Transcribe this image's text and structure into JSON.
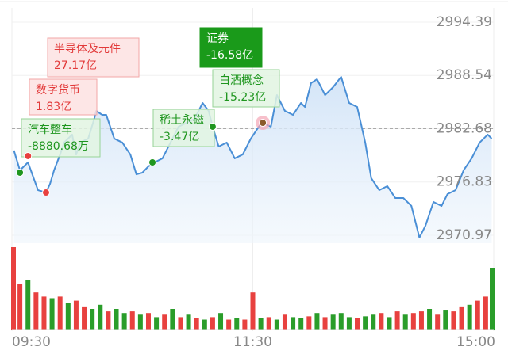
{
  "chart_data": [
    {
      "type": "line",
      "color": "#4a8fd6",
      "x": [
        1,
        4,
        8,
        13,
        17,
        19,
        21,
        24,
        26,
        30,
        32,
        34,
        38,
        41,
        42,
        45,
        47,
        51,
        55,
        59,
        62,
        65,
        68,
        71,
        75,
        79,
        83,
        87,
        91,
        95,
        98,
        100,
        103,
        107,
        111,
        115,
        119,
        123,
        125,
        129,
        132,
        136,
        140,
        144,
        146,
        149,
        152,
        156,
        160,
        164,
        168,
        172,
        176,
        179,
        183,
        187,
        191,
        195,
        199,
        203,
        206,
        210,
        214,
        217,
        221,
        225,
        229,
        233,
        237,
        239
      ],
      "values": [
        2980.29,
        2978.11,
        2978.98,
        2975.93,
        2975.67,
        2976.63,
        2978.11,
        2979.85,
        2981.16,
        2982.03,
        2979.85,
        2981.16,
        2981.59,
        2983.77,
        2984.64,
        2984.2,
        2984.2,
        2981.59,
        2981.16,
        2979.85,
        2977.67,
        2977.85,
        2978.54,
        2978.98,
        2979.42,
        2981.16,
        2982.9,
        2983.33,
        2983.77,
        2985.51,
        2984.64,
        2982.9,
        2980.72,
        2981.16,
        2979.42,
        2979.85,
        2981.59,
        2982.9,
        2983.33,
        2982.9,
        2986.38,
        2984.64,
        2984.2,
        2985.51,
        2985.07,
        2987.69,
        2988.12,
        2986.38,
        2987.25,
        2988.38,
        2985.51,
        2985.07,
        2981.16,
        2977.24,
        2975.93,
        2976.37,
        2975.06,
        2975.06,
        2974.19,
        2970.71,
        2972.02,
        2974.63,
        2974.19,
        2975.5,
        2975.93,
        2978.11,
        2979.42,
        2981.16,
        2982.03,
        2981.59
      ],
      "xlim": [
        0,
        240
      ],
      "xticks": [
        {
          "value": 0,
          "label": "09:30"
        },
        {
          "value": 120,
          "label": "11:30"
        },
        {
          "value": 240,
          "label": "15:00"
        }
      ],
      "ylim": [
        2970.97,
        2994.39
      ],
      "yticks": [
        2970.97,
        2976.83,
        2982.68,
        2988.54,
        2994.39
      ],
      "reference": 2982.68,
      "grid": true,
      "annotations": [
        {
          "name": "半导体及元件",
          "amount": "27.17亿",
          "x": 17,
          "y": 2975.67,
          "style": "red"
        },
        {
          "name": "数字货币",
          "amount": "1.83亿",
          "x": 8,
          "y": 2979.68,
          "style": "red"
        },
        {
          "name": "汽车整车",
          "amount": "-8880.68万",
          "x": 4,
          "y": 2977.85,
          "style": "green"
        },
        {
          "name": "稀土永磁",
          "amount": "-3.47亿",
          "x": 70,
          "y": 2978.98,
          "style": "green"
        },
        {
          "name": "证券",
          "amount": "-16.58亿",
          "x": 125,
          "y": 2983.33,
          "style": "green-solid",
          "highlighted": true
        },
        {
          "name": "白酒概念",
          "amount": "-15.23亿",
          "x": 100,
          "y": 2982.9,
          "style": "green"
        }
      ]
    },
    {
      "type": "volume",
      "x": [
        0,
        4,
        8,
        12,
        16,
        20,
        24,
        28,
        32,
        36,
        40,
        44,
        48,
        52,
        56,
        60,
        64,
        68,
        72,
        76,
        80,
        84,
        88,
        92,
        96,
        100,
        104,
        108,
        112,
        116,
        120,
        124,
        128,
        132,
        136,
        140,
        144,
        148,
        152,
        156,
        160,
        164,
        168,
        172,
        176,
        180,
        184,
        188,
        192,
        196,
        200,
        204,
        208,
        212,
        216,
        220,
        224,
        228,
        232,
        236,
        240
      ],
      "values": [
        100,
        55,
        60,
        45,
        40,
        38,
        40,
        32,
        35,
        28,
        25,
        30,
        22,
        25,
        20,
        22,
        18,
        20,
        15,
        18,
        25,
        15,
        18,
        14,
        12,
        15,
        20,
        12,
        14,
        12,
        45,
        14,
        15,
        12,
        18,
        15,
        14,
        16,
        20,
        15,
        18,
        20,
        15,
        14,
        16,
        18,
        20,
        15,
        22,
        18,
        20,
        22,
        25,
        18,
        24,
        22,
        28,
        30,
        35,
        40,
        75
      ],
      "colors": [
        "#e8413f",
        "#e8413f",
        "#2a9d2a",
        "#e8413f",
        "#e8413f",
        "#2a9d2a",
        "#e8413f",
        "#2a9d2a",
        "#e8413f",
        "#e8413f",
        "#2a9d2a",
        "#2a9d2a",
        "#e8413f",
        "#2a9d2a",
        "#2a9d2a",
        "#e8413f",
        "#2a9d2a",
        "#e8413f",
        "#2a9d2a",
        "#e8413f",
        "#2a9d2a",
        "#e8413f",
        "#2a9d2a",
        "#e8413f",
        "#2a9d2a",
        "#e8413f",
        "#2a9d2a",
        "#e8413f",
        "#2a9d2a",
        "#e8413f",
        "#e8413f",
        "#2a9d2a",
        "#e8413f",
        "#2a9d2a",
        "#e8413f",
        "#2a9d2a",
        "#2a9d2a",
        "#e8413f",
        "#2a9d2a",
        "#e8413f",
        "#2a9d2a",
        "#2a9d2a",
        "#2a9d2a",
        "#e8413f",
        "#2a9d2a",
        "#2a9d2a",
        "#e8413f",
        "#2a9d2a",
        "#e8413f",
        "#2a9d2a",
        "#e8413f",
        "#e8413f",
        "#2a9d2a",
        "#e8413f",
        "#2a9d2a",
        "#e8413f",
        "#e8413f",
        "#2a9d2a",
        "#e8413f",
        "#e8413f",
        "#2a9d2a"
      ],
      "xlim": [
        0,
        240
      ],
      "ylim": [
        0,
        100
      ]
    }
  ]
}
